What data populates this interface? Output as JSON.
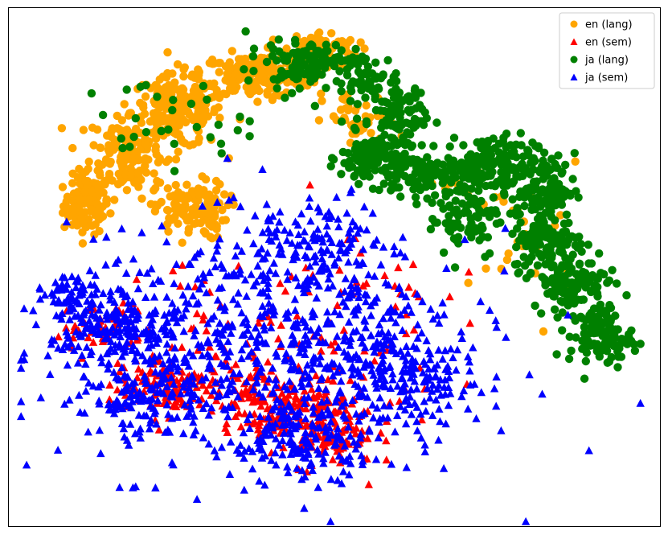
{
  "chart_data": {
    "type": "scatter",
    "title": "",
    "xlabel": "",
    "ylabel": "",
    "axes_ticks": "none",
    "xlim": [
      0,
      100
    ],
    "ylim": [
      0,
      100
    ],
    "grid": false,
    "legend_placement": "top-right",
    "series": [
      {
        "name": "en (lang)",
        "marker": "circle",
        "color": "#FFA500",
        "clusters": [
          {
            "cx": 12,
            "cy": 62,
            "rx": 2.5,
            "ry": 4,
            "n": 110
          },
          {
            "cx": 18,
            "cy": 72,
            "rx": 4,
            "ry": 6,
            "n": 150
          },
          {
            "cx": 26,
            "cy": 80,
            "rx": 5,
            "ry": 5,
            "n": 190
          },
          {
            "cx": 38,
            "cy": 87,
            "rx": 6,
            "ry": 3,
            "n": 200
          },
          {
            "cx": 48,
            "cy": 92,
            "rx": 4,
            "ry": 2.5,
            "n": 90
          },
          {
            "cx": 28,
            "cy": 61,
            "rx": 4,
            "ry": 4,
            "n": 120
          },
          {
            "cx": 54,
            "cy": 78,
            "rx": 4,
            "ry": 4,
            "n": 40
          },
          {
            "cx": 80,
            "cy": 56,
            "rx": 6,
            "ry": 10,
            "n": 25
          },
          {
            "cx": 70,
            "cy": 66,
            "rx": 4,
            "ry": 5,
            "n": 15
          }
        ]
      },
      {
        "name": "en (sem)",
        "marker": "triangle",
        "color": "#FF0000",
        "clusters": [
          {
            "cx": 24,
            "cy": 27,
            "rx": 6,
            "ry": 4,
            "n": 110
          },
          {
            "cx": 48,
            "cy": 20,
            "rx": 6,
            "ry": 6,
            "n": 170
          },
          {
            "cx": 40,
            "cy": 25,
            "rx": 6,
            "ry": 5,
            "n": 90
          },
          {
            "cx": 14,
            "cy": 38,
            "rx": 5,
            "ry": 4,
            "n": 40
          },
          {
            "cx": 50,
            "cy": 40,
            "rx": 12,
            "ry": 15,
            "n": 70
          },
          {
            "cx": 30,
            "cy": 38,
            "rx": 10,
            "ry": 10,
            "n": 40
          }
        ]
      },
      {
        "name": "ja (lang)",
        "marker": "circle",
        "color": "#008000",
        "clusters": [
          {
            "cx": 46,
            "cy": 90,
            "rx": 4,
            "ry": 2.5,
            "n": 80
          },
          {
            "cx": 55,
            "cy": 86,
            "rx": 4,
            "ry": 4,
            "n": 70
          },
          {
            "cx": 60,
            "cy": 79,
            "rx": 3,
            "ry": 5,
            "n": 90
          },
          {
            "cx": 56,
            "cy": 71,
            "rx": 3.5,
            "ry": 3.5,
            "n": 120
          },
          {
            "cx": 64,
            "cy": 68,
            "rx": 6,
            "ry": 3,
            "n": 110
          },
          {
            "cx": 74,
            "cy": 70,
            "rx": 5,
            "ry": 4,
            "n": 140
          },
          {
            "cx": 82,
            "cy": 65,
            "rx": 3.5,
            "ry": 5,
            "n": 110
          },
          {
            "cx": 70,
            "cy": 60,
            "rx": 4,
            "ry": 6,
            "n": 80
          },
          {
            "cx": 83,
            "cy": 55,
            "rx": 4,
            "ry": 4,
            "n": 120
          },
          {
            "cx": 86,
            "cy": 47,
            "rx": 4,
            "ry": 3.5,
            "n": 110
          },
          {
            "cx": 91,
            "cy": 37,
            "rx": 3.5,
            "ry": 4,
            "n": 110
          },
          {
            "cx": 24,
            "cy": 78,
            "rx": 9,
            "ry": 6,
            "n": 30
          },
          {
            "cx": 42,
            "cy": 88,
            "rx": 4,
            "ry": 3,
            "n": 25
          }
        ]
      },
      {
        "name": "ja (sem)",
        "marker": "triangle",
        "color": "#0000FF",
        "clusters": [
          {
            "cx": 40,
            "cy": 34,
            "rx": 22,
            "ry": 16,
            "n": 650
          },
          {
            "cx": 16,
            "cy": 38,
            "rx": 7,
            "ry": 7,
            "n": 200
          },
          {
            "cx": 22,
            "cy": 25,
            "rx": 7,
            "ry": 4,
            "n": 110
          },
          {
            "cx": 46,
            "cy": 17,
            "rx": 8,
            "ry": 5,
            "n": 140
          },
          {
            "cx": 60,
            "cy": 32,
            "rx": 8,
            "ry": 10,
            "n": 140
          },
          {
            "cx": 46,
            "cy": 54,
            "rx": 8,
            "ry": 7,
            "n": 130
          },
          {
            "cx": 9,
            "cy": 45,
            "rx": 3,
            "ry": 3,
            "n": 40
          },
          {
            "cx": 64,
            "cy": 28,
            "rx": 4,
            "ry": 4,
            "n": 40
          }
        ]
      }
    ]
  }
}
